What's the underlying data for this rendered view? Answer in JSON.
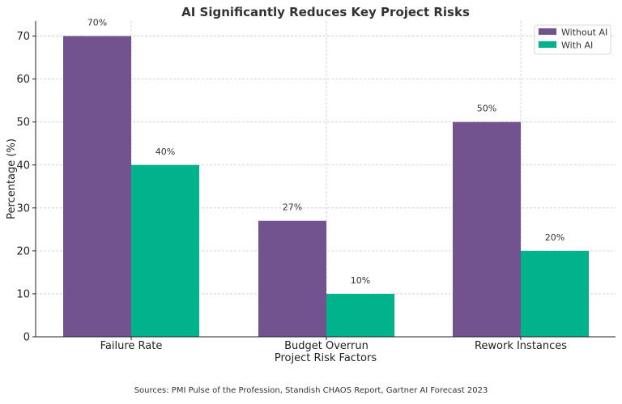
{
  "chart_data": {
    "type": "bar",
    "title": "AI Significantly Reduces Key Project Risks",
    "xlabel": "Project Risk Factors",
    "ylabel": "Percentage (%)",
    "categories": [
      "Failure Rate",
      "Budget Overrun",
      "Rework Instances"
    ],
    "series": [
      {
        "name": "Without AI",
        "color": "#735290",
        "values": [
          70,
          27,
          50
        ],
        "labels": [
          "70%",
          "27%",
          "50%"
        ]
      },
      {
        "name": "With AI",
        "color": "#00b38c",
        "values": [
          40,
          10,
          20
        ],
        "labels": [
          "40%",
          "10%",
          "20%"
        ]
      }
    ],
    "ylim": [
      0,
      73.5
    ],
    "yticks": [
      0,
      10,
      20,
      30,
      40,
      50,
      60,
      70
    ],
    "grid": true,
    "legend_position": "top-right"
  },
  "footer": {
    "source": "Sources: PMI Pulse of the Profession, Standish CHAOS Report, Gartner AI Forecast 2023"
  }
}
